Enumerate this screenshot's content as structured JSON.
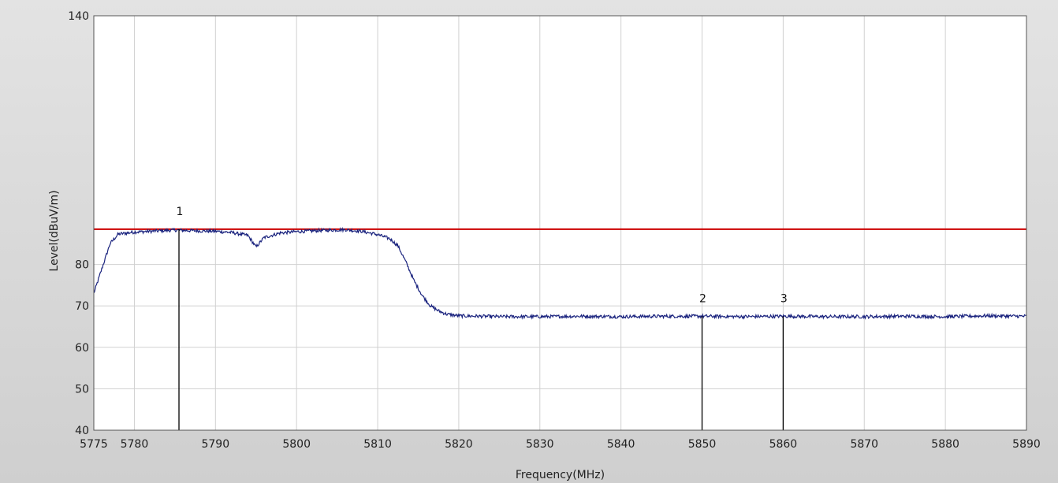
{
  "chart_data": {
    "type": "line",
    "title": "",
    "xlabel": "Frequency(MHz)",
    "ylabel": "Level(dBuV/m)",
    "xlim": [
      5775,
      5890
    ],
    "ylim": [
      40,
      140
    ],
    "x_ticks": [
      5775,
      5780,
      5790,
      5800,
      5810,
      5820,
      5830,
      5840,
      5850,
      5860,
      5870,
      5880,
      5890
    ],
    "y_ticks": [
      40,
      50,
      60,
      70,
      80,
      140
    ],
    "grid": true,
    "colors": {
      "plot_background": "#ffffff",
      "grid": "#d0d0d0",
      "trace": "#1a237e",
      "limit": "#cc0000",
      "marker": "#000000"
    },
    "series": [
      {
        "x": [
          5775,
          5776,
          5777,
          5778,
          5780,
          5782,
          5785,
          5788,
          5790,
          5792,
          5794,
          5795,
          5796,
          5798,
          5800,
          5803,
          5806,
          5808,
          5810,
          5811.5,
          5812.5,
          5813.5,
          5814.5,
          5815.5,
          5816.5,
          5817.5,
          5818.5,
          5820,
          5825,
          5830,
          5835,
          5840,
          5845,
          5850,
          5855,
          5860,
          5865,
          5870,
          5875,
          5880,
          5885,
          5890
        ],
        "y": [
          73,
          79,
          85,
          87.3,
          87.8,
          88,
          88.3,
          88.1,
          88,
          87.7,
          87,
          84.2,
          86.5,
          87.6,
          87.9,
          88.2,
          88.4,
          88,
          87.2,
          86.2,
          84.5,
          80.5,
          76,
          72.5,
          70,
          68.8,
          68,
          67.6,
          67.4,
          67.4,
          67.5,
          67.4,
          67.5,
          67.5,
          67.4,
          67.5,
          67.4,
          67.4,
          67.5,
          67.4,
          67.6,
          67.5
        ]
      },
      {
        "x": [
          5775,
          5890
        ],
        "y": [
          88.5,
          88.5
        ]
      }
    ],
    "markers": [
      {
        "label": "1",
        "x": 5785.5,
        "y": 88.5
      },
      {
        "label": "2",
        "x": 5850,
        "y": 67.5
      },
      {
        "label": "3",
        "x": 5860,
        "y": 67.5
      }
    ]
  }
}
